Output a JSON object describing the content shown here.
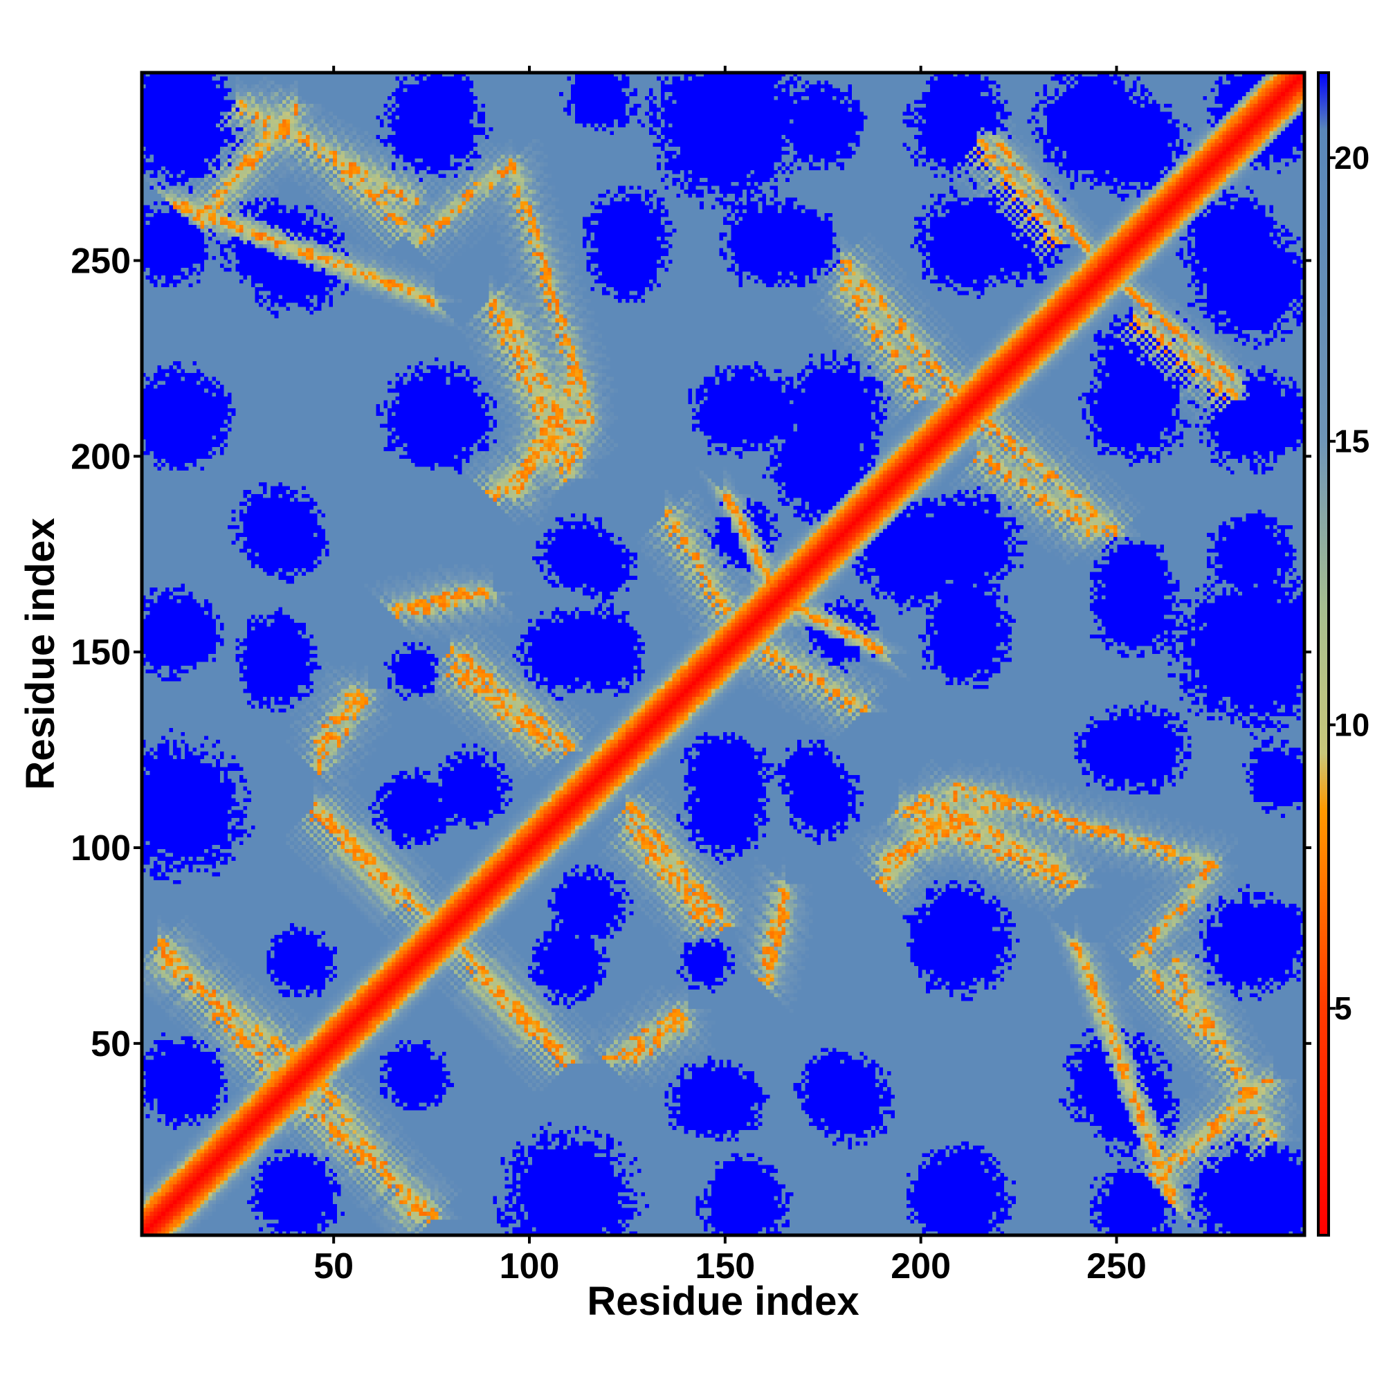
{
  "chart_data": {
    "type": "heatmap",
    "title": "",
    "xlabel": "Residue index",
    "ylabel": "Residue index",
    "n_residues": 298,
    "xlim": [
      1,
      298
    ],
    "ylim": [
      1,
      298
    ],
    "x_ticks": [
      50,
      100,
      150,
      200,
      250
    ],
    "y_ticks": [
      50,
      100,
      150,
      200,
      250
    ],
    "colorbar": {
      "range": [
        1,
        21.5
      ],
      "ticks": [
        5,
        10,
        15,
        20
      ],
      "stops": [
        {
          "value": 1,
          "color": "#ff0000"
        },
        {
          "value": 5,
          "color": "#ff3b00"
        },
        {
          "value": 8.5,
          "color": "#ff9900"
        },
        {
          "value": 9.5,
          "color": "#c9c77a"
        },
        {
          "value": 12,
          "color": "#a8bf8f"
        },
        {
          "value": 15,
          "color": "#6f95b8"
        },
        {
          "value": 20.5,
          "color": "#5a87b9"
        },
        {
          "value": 21.5,
          "color": "#0000ff"
        }
      ]
    },
    "diagonal_value": 1,
    "background_value": 19.5,
    "far_value": 21.5,
    "bands": [
      {
        "kind": "parallel",
        "from": [
          8,
          265
        ],
        "to": [
          75,
          240
        ],
        "value": 9
      },
      {
        "kind": "anti",
        "from": [
          25,
          290
        ],
        "to": [
          70,
          265
        ],
        "value": 9
      },
      {
        "kind": "anti",
        "from": [
          95,
          275
        ],
        "to": [
          115,
          210
        ],
        "value": 10
      },
      {
        "kind": "anti",
        "from": [
          90,
          240
        ],
        "to": [
          110,
          195
        ],
        "value": 9
      },
      {
        "kind": "parallel",
        "from": [
          90,
          190
        ],
        "to": [
          115,
          210
        ],
        "value": 9
      },
      {
        "kind": "anti",
        "from": [
          180,
          250
        ],
        "to": [
          210,
          215
        ],
        "value": 9
      },
      {
        "kind": "parallel",
        "from": [
          220,
          280
        ],
        "to": [
          245,
          250
        ],
        "value": 9
      },
      {
        "kind": "anti",
        "from": [
          255,
          235
        ],
        "to": [
          280,
          215
        ],
        "value": 9
      },
      {
        "kind": "anti",
        "from": [
          215,
          200
        ],
        "to": [
          245,
          180
        ],
        "value": 9
      },
      {
        "kind": "parallel",
        "from": [
          150,
          190
        ],
        "to": [
          165,
          160
        ],
        "value": 9
      },
      {
        "kind": "anti",
        "from": [
          160,
          150
        ],
        "to": [
          185,
          135
        ],
        "value": 9
      },
      {
        "kind": "anti",
        "from": [
          80,
          150
        ],
        "to": [
          110,
          125
        ],
        "value": 9
      },
      {
        "kind": "parallel",
        "from": [
          45,
          125
        ],
        "to": [
          55,
          140
        ],
        "value": 10
      },
      {
        "kind": "anti",
        "from": [
          45,
          110
        ],
        "to": [
          70,
          85
        ],
        "value": 9
      },
      {
        "kind": "anti",
        "from": [
          125,
          105
        ],
        "to": [
          145,
          80
        ],
        "value": 9
      },
      {
        "kind": "parallel",
        "from": [
          190,
          95
        ],
        "to": [
          220,
          112
        ],
        "value": 9
      },
      {
        "kind": "anti",
        "from": [
          200,
          112
        ],
        "to": [
          235,
          95
        ],
        "value": 9
      },
      {
        "kind": "parallel",
        "from": [
          255,
          70
        ],
        "to": [
          275,
          95
        ],
        "value": 10
      },
      {
        "kind": "anti",
        "from": [
          258,
          68
        ],
        "to": [
          275,
          50
        ],
        "value": 9
      },
      {
        "kind": "anti",
        "from": [
          5,
          72
        ],
        "to": [
          40,
          45
        ],
        "value": 9
      },
      {
        "kind": "anti",
        "from": [
          40,
          35
        ],
        "to": [
          75,
          5
        ],
        "value": 9
      },
      {
        "kind": "anti",
        "from": [
          80,
          75
        ],
        "to": [
          108,
          45
        ],
        "value": 9
      },
      {
        "kind": "parallel",
        "from": [
          120,
          45
        ],
        "to": [
          140,
          58
        ],
        "value": 10
      },
      {
        "kind": "parallel",
        "from": [
          260,
          15
        ],
        "to": [
          290,
          40
        ],
        "value": 9
      },
      {
        "kind": "parallel",
        "from": [
          160,
          70
        ],
        "to": [
          165,
          90
        ],
        "value": 10
      },
      {
        "kind": "parallel",
        "from": [
          65,
          160
        ],
        "to": [
          85,
          165
        ],
        "value": 10
      }
    ],
    "far_blobs": [
      [
        10,
        285,
        14
      ],
      [
        75,
        285,
        12
      ],
      [
        150,
        285,
        18
      ],
      [
        210,
        285,
        12
      ],
      [
        245,
        285,
        14
      ],
      [
        290,
        285,
        10
      ],
      [
        32,
        255,
        10
      ],
      [
        125,
        258,
        10
      ],
      [
        168,
        255,
        10
      ],
      [
        225,
        258,
        12
      ],
      [
        280,
        255,
        12
      ],
      [
        12,
        210,
        10
      ],
      [
        75,
        210,
        12
      ],
      [
        152,
        212,
        10
      ],
      [
        178,
        212,
        12
      ],
      [
        255,
        212,
        12
      ],
      [
        292,
        210,
        8
      ],
      [
        38,
        178,
        9
      ],
      [
        112,
        175,
        9
      ],
      [
        198,
        175,
        13
      ],
      [
        285,
        175,
        10
      ],
      [
        12,
        155,
        8
      ],
      [
        35,
        150,
        9
      ],
      [
        108,
        150,
        10
      ],
      [
        120,
        148,
        8
      ],
      [
        180,
        155,
        8
      ],
      [
        212,
        158,
        10
      ],
      [
        255,
        160,
        10
      ],
      [
        290,
        155,
        10
      ],
      [
        12,
        110,
        10
      ],
      [
        85,
        115,
        9
      ],
      [
        152,
        118,
        9
      ],
      [
        172,
        118,
        8
      ],
      [
        250,
        125,
        9
      ],
      [
        292,
        118,
        8
      ],
      [
        40,
        72,
        7
      ],
      [
        110,
        70,
        9
      ],
      [
        145,
        70,
        6
      ],
      [
        210,
        78,
        12
      ],
      [
        292,
        78,
        7
      ],
      [
        10,
        40,
        10
      ],
      [
        70,
        42,
        8
      ],
      [
        145,
        35,
        9
      ],
      [
        182,
        35,
        10
      ],
      [
        250,
        40,
        12
      ],
      [
        40,
        12,
        9
      ],
      [
        110,
        10,
        16
      ],
      [
        155,
        8,
        10
      ],
      [
        210,
        10,
        12
      ],
      [
        255,
        8,
        10
      ],
      [
        290,
        10,
        12
      ]
    ]
  }
}
